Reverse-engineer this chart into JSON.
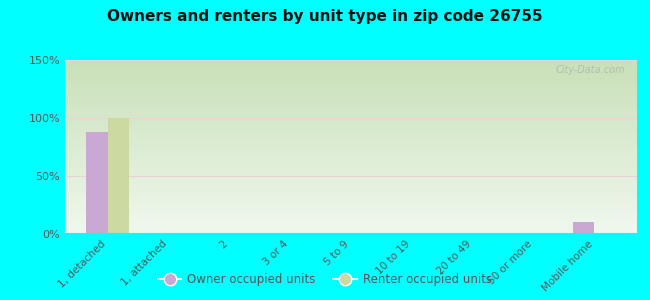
{
  "title": "Owners and renters by unit type in zip code 26755",
  "categories": [
    "1, detached",
    "1, attached",
    "2",
    "3 or 4",
    "5 to 9",
    "10 to 19",
    "20 to 49",
    "50 or more",
    "Mobile home"
  ],
  "owner_values": [
    88,
    0,
    0,
    0,
    0,
    0,
    0,
    0,
    10
  ],
  "renter_values": [
    100,
    0,
    0,
    0,
    0,
    0,
    0,
    0,
    0
  ],
  "owner_color": "#c9a8d4",
  "renter_color": "#ccd9a0",
  "background_color": "#00ffff",
  "ylim": [
    0,
    150
  ],
  "yticks": [
    0,
    50,
    100,
    150
  ],
  "ytick_labels": [
    "0%",
    "50%",
    "100%",
    "150%"
  ],
  "bar_width": 0.35,
  "legend_owner": "Owner occupied units",
  "legend_renter": "Renter occupied units",
  "watermark": "City-Data.com"
}
